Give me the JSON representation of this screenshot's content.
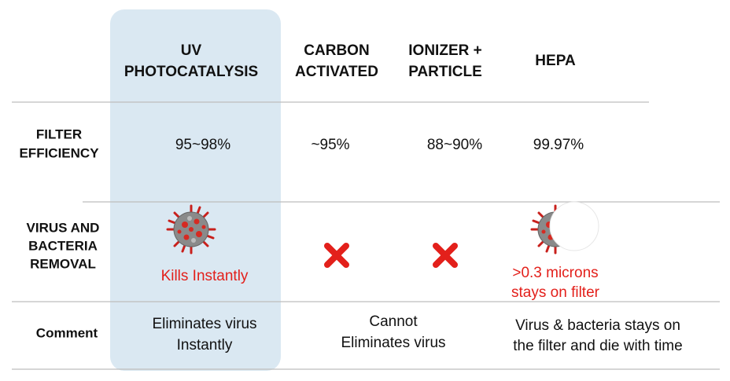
{
  "table": {
    "columns": [
      [
        "UV",
        "PHOTOCATALYSIS"
      ],
      [
        "CARBON",
        "ACTIVATED"
      ],
      [
        "IONIZER +",
        "PARTICLE"
      ],
      [
        "HEPA"
      ]
    ],
    "row_labels": [
      [
        "FILTER",
        "EFFICIENCY"
      ],
      [
        "VIRUS AND",
        "BACTERIA",
        "REMOVAL"
      ],
      [
        "Comment"
      ]
    ],
    "efficiency": [
      "95~98%",
      "~95%",
      "88~90%",
      "99.97%"
    ],
    "removal_notes": {
      "uv": [
        "Kills Instantly"
      ],
      "hepa": [
        ">0.3 microns",
        "stays on filter"
      ]
    },
    "comments": {
      "uv": [
        "Eliminates virus",
        "Instantly"
      ],
      "carbon_ionizer": [
        "Cannot",
        "Eliminates virus"
      ],
      "hepa": [
        "Virus & bacteria stays on",
        "the filter and die with time"
      ]
    }
  }
}
